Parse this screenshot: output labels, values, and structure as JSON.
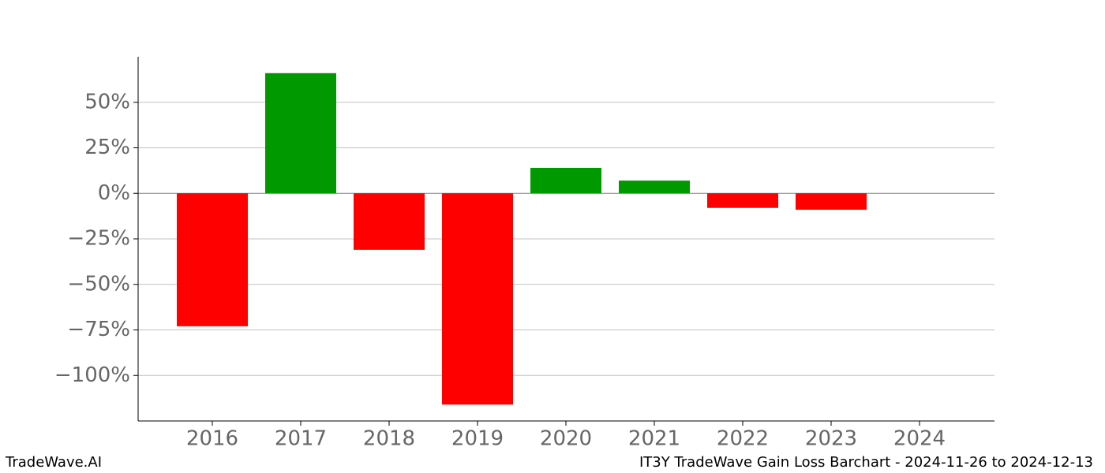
{
  "chart_data": {
    "type": "bar",
    "title": "IT3Y TradeWave Gain Loss Barchart - 2024-11-26 to 2024-12-13",
    "source": "TradeWave.AI",
    "categories": [
      "2016",
      "2017",
      "2018",
      "2019",
      "2020",
      "2021",
      "2022",
      "2023",
      "2024"
    ],
    "values": [
      -73,
      66,
      -31,
      -116,
      14,
      7,
      -8,
      -9,
      null
    ],
    "positive_color": "#009900",
    "negative_color": "#ff0000",
    "ylim": [
      -125,
      75
    ],
    "yticks": [
      {
        "value": 50,
        "label": "50%"
      },
      {
        "value": 25,
        "label": "25%"
      },
      {
        "value": 0,
        "label": "0%"
      },
      {
        "value": -25,
        "label": "−25%"
      },
      {
        "value": -50,
        "label": "−50%"
      },
      {
        "value": -75,
        "label": "−75%"
      },
      {
        "value": -100,
        "label": "−100%"
      }
    ],
    "grid": true
  }
}
